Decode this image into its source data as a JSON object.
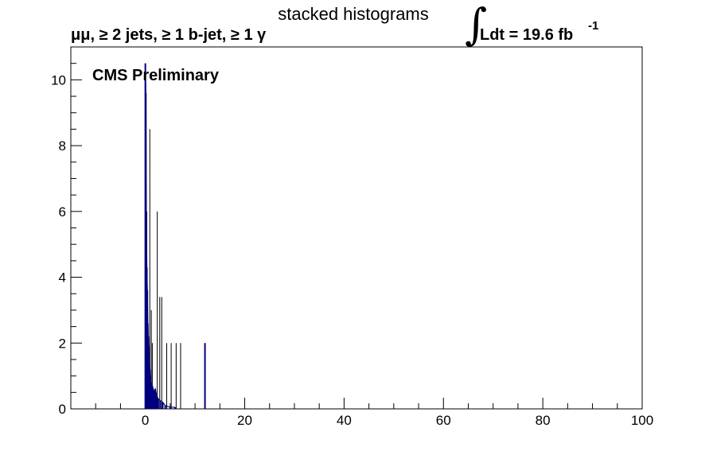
{
  "title": "stacked histograms",
  "selection_label": "μμ, ≥ 2 jets, ≥ 1 b-jet, ≥ 1 γ",
  "lumi": {
    "text": "Ldt = 19.6 fb",
    "exponent": "-1"
  },
  "experiment_label": "CMS Preliminary",
  "colors": {
    "primary_series": "#00007f",
    "secondary_series": "#000000",
    "axis": "#000000",
    "background": "#ffffff"
  },
  "chart_data": {
    "type": "bar",
    "title": "stacked histograms",
    "xlabel": "",
    "ylabel": "",
    "xlim": [
      -15,
      100
    ],
    "ylim": [
      0,
      11
    ],
    "x_ticks": [
      0,
      20,
      40,
      60,
      80,
      100
    ],
    "x_tick_labels": [
      "0",
      "20",
      "40",
      "60",
      "80",
      "100"
    ],
    "y_ticks": [
      0,
      2,
      4,
      6,
      8,
      10
    ],
    "y_tick_labels": [
      "0",
      "2",
      "4",
      "6",
      "8",
      "10"
    ],
    "grid": false,
    "legend": "none",
    "series": [
      {
        "color": "#00007f",
        "x": [
          0.0,
          0.1,
          0.2,
          0.3,
          0.4,
          0.5,
          0.6,
          0.7,
          0.8,
          0.9,
          1.0,
          1.2,
          1.4,
          1.6,
          1.8,
          2.0,
          2.3,
          2.6,
          3.0,
          3.5,
          4.0,
          5.0,
          6.0,
          12.0
        ],
        "values": [
          10.5,
          9.6,
          6.0,
          4.3,
          3.6,
          2.6,
          2.2,
          1.9,
          1.4,
          1.2,
          1.0,
          0.8,
          0.7,
          0.6,
          0.5,
          0.6,
          0.4,
          0.3,
          0.25,
          0.2,
          0.1,
          0.05,
          0.05,
          2.0
        ]
      },
      {
        "color": "#000000",
        "x": [
          0.3,
          0.5,
          0.9,
          1.2,
          1.4,
          2.4,
          2.9,
          3.3,
          4.3,
          5.2,
          6.2,
          7.1
        ],
        "values": [
          6.0,
          2.5,
          8.5,
          3.0,
          2.0,
          6.0,
          3.4,
          3.4,
          2.0,
          2.0,
          2.0,
          2.0
        ]
      }
    ]
  }
}
